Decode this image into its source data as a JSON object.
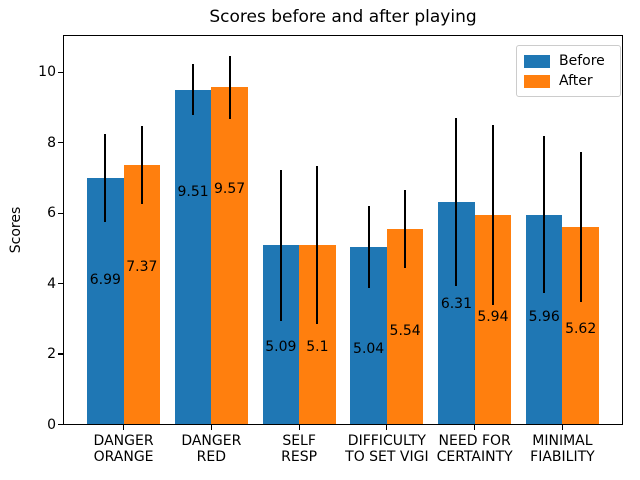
{
  "chart_data": {
    "type": "bar",
    "title": "Scores before and after playing",
    "ylabel": "Scores",
    "xlabel": "",
    "categories": [
      "DANGER\nORANGE",
      "DANGER\nRED",
      "SELF\nRESP",
      "DIFFICULTY\nTO SET VIGI",
      "NEED FOR\nCERTAINTY",
      "MINIMAL\nFIABILITY"
    ],
    "series": [
      {
        "name": "Before",
        "color": "#1f77b4",
        "values": [
          6.99,
          9.51,
          5.09,
          5.04,
          6.31,
          5.96
        ],
        "errors": [
          1.25,
          0.73,
          2.15,
          1.17,
          2.38,
          2.23
        ]
      },
      {
        "name": "After",
        "color": "#ff7f0e",
        "values": [
          7.37,
          9.57,
          5.1,
          5.54,
          5.94,
          5.62
        ],
        "errors": [
          1.1,
          0.9,
          2.25,
          1.11,
          2.56,
          2.13
        ]
      }
    ],
    "yticks": [
      0,
      2,
      4,
      6,
      8,
      10
    ],
    "ylim": [
      0,
      11.06
    ],
    "grid": false,
    "error_bars": true,
    "error_bar_color": "#000000",
    "legend": {
      "position": "upper right",
      "entries": [
        "Before",
        "After"
      ]
    }
  }
}
